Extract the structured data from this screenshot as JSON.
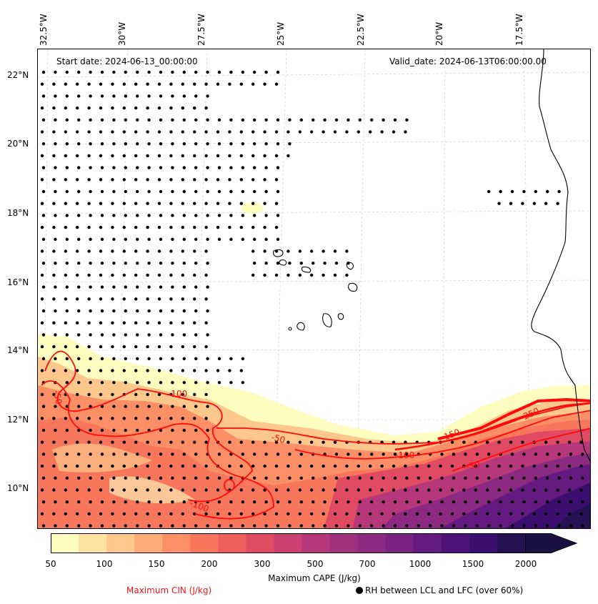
{
  "header": {
    "start_date": "Start date: 2024-06-13_00:00:00",
    "valid_date": "Valid_date: 2024-06-13T06:00:00.00"
  },
  "axes": {
    "longitude_labels": [
      "32.5°W",
      "30°W",
      "27.5°W",
      "25°W",
      "22.5°W",
      "20°W",
      "17.5°W"
    ],
    "latitude_labels": [
      "22°N",
      "20°N",
      "18°N",
      "16°N",
      "14°N",
      "12°N",
      "10°N"
    ]
  },
  "map": {
    "cin_contour_labels": [
      "-50",
      "-100",
      "-50",
      "-150",
      "-250",
      "-100",
      "-50",
      "-100"
    ],
    "colors": {
      "cin_contour": "#ff0a0a",
      "coastline": "#000000",
      "gridline": "#cccccc",
      "dots": "#000000"
    }
  },
  "colorbar": {
    "title": "Maximum CAPE (J/kg)",
    "tick_labels": [
      "50",
      "100",
      "150",
      "200",
      "300",
      "500",
      "700",
      "1000",
      "1500",
      "2000"
    ],
    "colors": [
      "#fcfdbf",
      "#fee3a3",
      "#fec88c",
      "#feac76",
      "#fc8f65",
      "#f8765c",
      "#ef5d5c",
      "#e04a63",
      "#cc3f71",
      "#b6377a",
      "#a1307e",
      "#8c2981",
      "#782281",
      "#641a80",
      "#4f127b",
      "#3b0f70",
      "#251255"
    ],
    "extend_color": "#1b1044"
  },
  "legend": {
    "cin_label": "Maximum CIN (J/kg)",
    "rh_label": "RH between LCL and LFC (over 60%)"
  }
}
